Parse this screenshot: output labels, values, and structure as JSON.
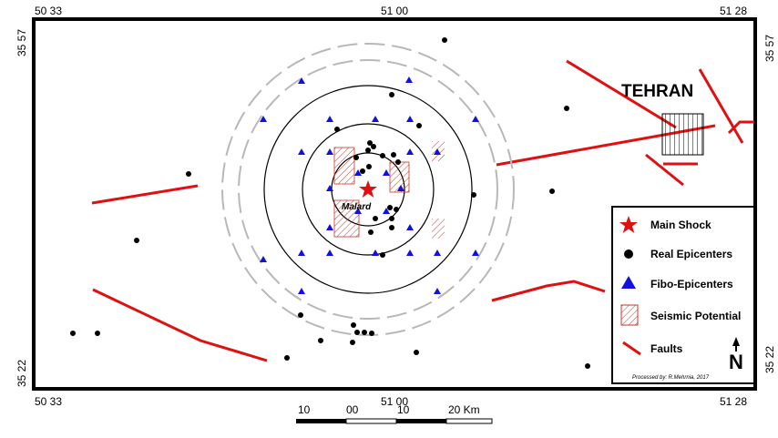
{
  "frame_labels": {
    "top": [
      "50 33",
      "51 00",
      "51 28"
    ],
    "bottom": [
      "50 33",
      "51 00",
      "51 28"
    ],
    "left": [
      "35 57",
      "35 22"
    ],
    "right": [
      "35 57",
      "35 22"
    ]
  },
  "city_label": "TEHRAN",
  "center_label": "Malard",
  "legend": {
    "items": [
      "Main Shock",
      "Real Epicenters",
      "Fibo-Epicenters",
      "Seismic Potential",
      "Faults"
    ],
    "north": "N",
    "credit": "Processed by: R.Mehrnia, 2017"
  },
  "scale_bar": {
    "labels": [
      "10",
      "00",
      "10",
      "20 Km"
    ]
  }
}
